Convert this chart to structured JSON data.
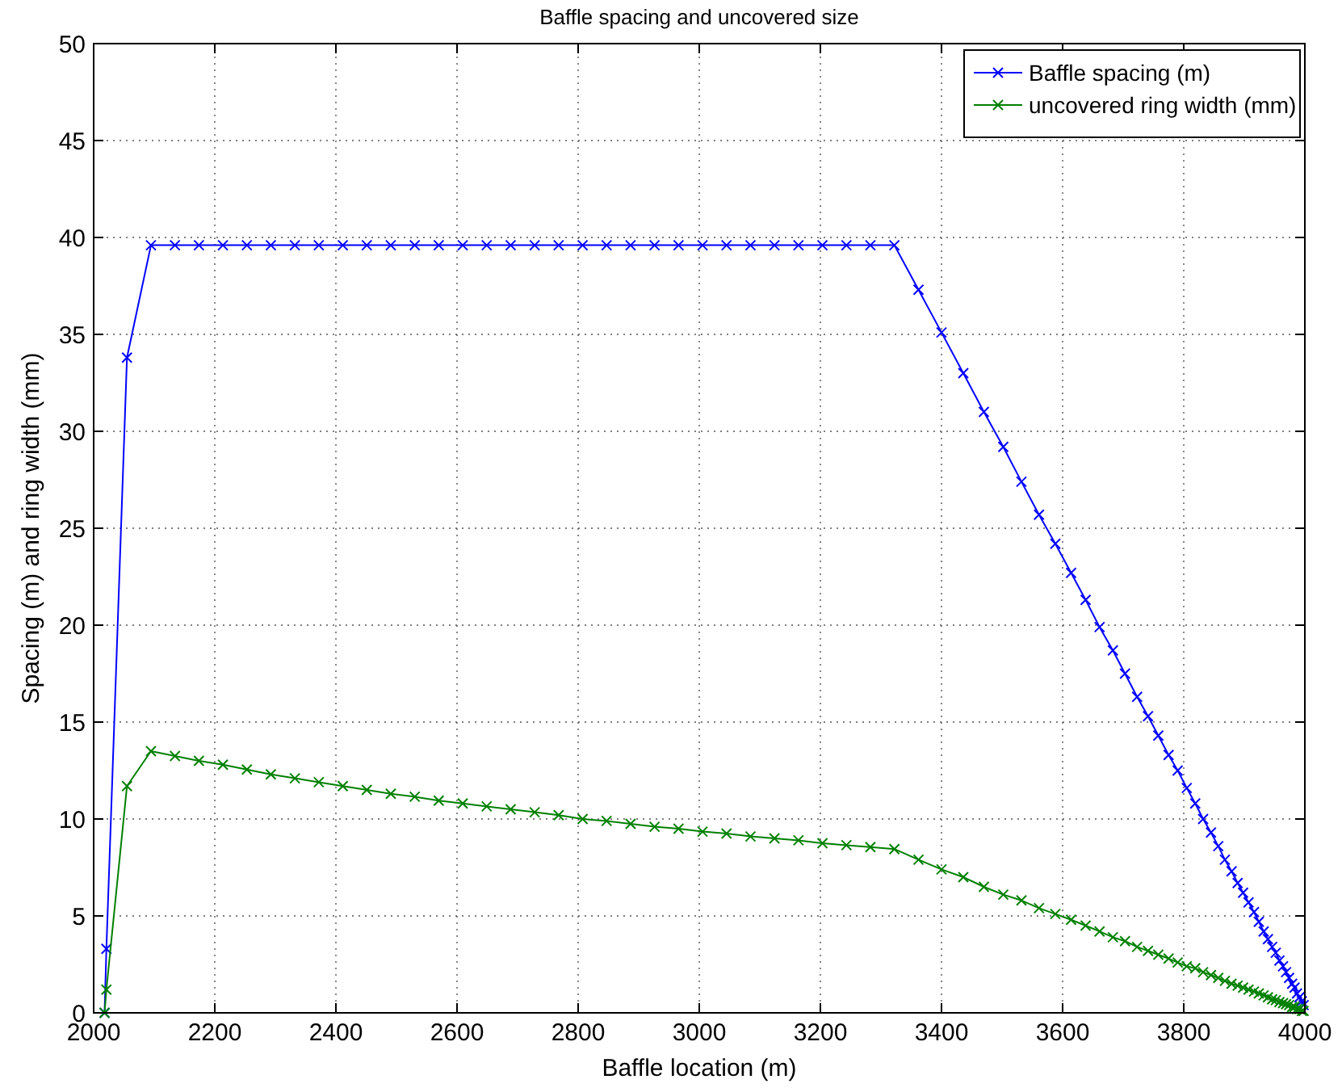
{
  "chart_data": {
    "type": "line",
    "title": "Baffle spacing and uncovered size",
    "xlabel": "Baffle location (m)",
    "ylabel": "Spacing (m) and ring width (mm)",
    "x": [
      2018,
      2021,
      2055,
      2094.6,
      2134.2,
      2173.8,
      2213.4,
      2253,
      2292.6,
      2332.2,
      2371.8,
      2411.4,
      2451,
      2490.6,
      2530.2,
      2569.8,
      2609.4,
      2649,
      2688.6,
      2728.2,
      2767.8,
      2807.4,
      2847,
      2886.6,
      2926.2,
      2965.8,
      3005.4,
      3045,
      3084.6,
      3124.2,
      3163.8,
      3203.4,
      3243,
      3282.6,
      3322.2,
      3362,
      3400,
      3436,
      3470,
      3502,
      3532,
      3561,
      3588,
      3614,
      3638,
      3661,
      3683,
      3703,
      3723,
      3741,
      3758,
      3775,
      3790,
      3805,
      3819,
      3832,
      3845,
      3857,
      3868,
      3879,
      3889,
      3898,
      3907,
      3916,
      3924,
      3932,
      3939,
      3946,
      3952,
      3958,
      3964,
      3969,
      3974,
      3979,
      3983,
      3987,
      3991,
      3995,
      3998
    ],
    "series": [
      {
        "name": "Baffle spacing (m)",
        "color": "#0000ff",
        "values": [
          0,
          3.3,
          33.8,
          39.6,
          39.6,
          39.6,
          39.6,
          39.6,
          39.6,
          39.6,
          39.6,
          39.6,
          39.6,
          39.6,
          39.6,
          39.6,
          39.6,
          39.6,
          39.6,
          39.6,
          39.6,
          39.6,
          39.6,
          39.6,
          39.6,
          39.6,
          39.6,
          39.6,
          39.6,
          39.6,
          39.6,
          39.6,
          39.6,
          39.6,
          39.6,
          37.3,
          35.1,
          33.0,
          31.0,
          29.2,
          27.4,
          25.7,
          24.2,
          22.7,
          21.3,
          19.9,
          18.7,
          17.5,
          16.3,
          15.3,
          14.3,
          13.3,
          12.5,
          11.6,
          10.8,
          10.0,
          9.3,
          8.6,
          7.9,
          7.3,
          6.7,
          6.2,
          5.7,
          5.2,
          4.7,
          4.2,
          3.8,
          3.4,
          3.1,
          2.7,
          2.4,
          2.1,
          1.8,
          1.5,
          1.3,
          1.0,
          0.8,
          0.6,
          0.4
        ]
      },
      {
        "name": "uncovered ring width (mm)",
        "color": "#008000",
        "values": [
          0,
          1.2,
          11.7,
          13.5,
          13.25,
          13.0,
          12.8,
          12.55,
          12.3,
          12.1,
          11.9,
          11.7,
          11.5,
          11.3,
          11.15,
          10.95,
          10.8,
          10.65,
          10.5,
          10.35,
          10.2,
          10.0,
          9.9,
          9.75,
          9.6,
          9.5,
          9.35,
          9.25,
          9.1,
          9.0,
          8.9,
          8.75,
          8.65,
          8.55,
          8.45,
          7.9,
          7.4,
          7.0,
          6.5,
          6.1,
          5.8,
          5.4,
          5.1,
          4.8,
          4.5,
          4.2,
          3.9,
          3.7,
          3.4,
          3.2,
          3.0,
          2.8,
          2.6,
          2.4,
          2.3,
          2.1,
          1.95,
          1.8,
          1.65,
          1.5,
          1.4,
          1.3,
          1.2,
          1.1,
          1.0,
          0.9,
          0.8,
          0.7,
          0.65,
          0.55,
          0.5,
          0.45,
          0.4,
          0.3,
          0.3,
          0.2,
          0.2,
          0.1,
          0.1
        ]
      }
    ],
    "xlim": [
      2000,
      4000
    ],
    "ylim": [
      0,
      50
    ],
    "xticks": [
      2000,
      2200,
      2400,
      2600,
      2800,
      3000,
      3200,
      3400,
      3600,
      3800,
      4000
    ],
    "yticks": [
      0,
      5,
      10,
      15,
      20,
      25,
      30,
      35,
      40,
      45,
      50
    ],
    "grid": true,
    "legend": "top right",
    "marker": "cross",
    "line_style": "solid"
  }
}
